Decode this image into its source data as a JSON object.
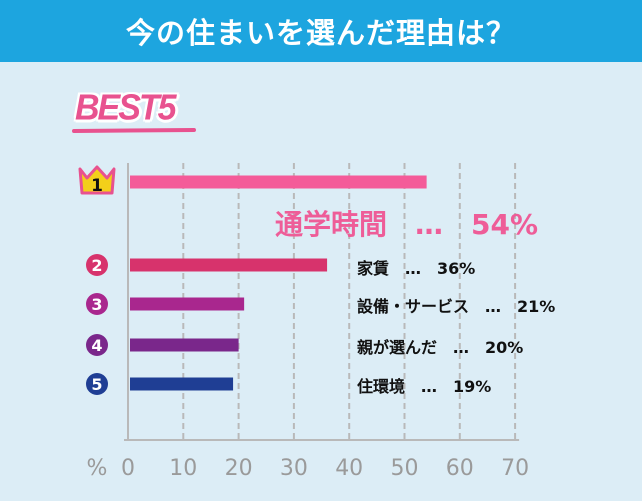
{
  "header": {
    "title": "今の住まいを選んだ理由は？"
  },
  "badge": {
    "text": "BEST5"
  },
  "chart_data": {
    "type": "bar",
    "orientation": "horizontal",
    "unit": "%",
    "xlim": [
      0,
      70
    ],
    "xticks": [
      0,
      10,
      20,
      30,
      40,
      50,
      60,
      70
    ],
    "grid": true,
    "categories": [
      "通学時間",
      "家賃",
      "設備・サービス",
      "親が選んだ",
      "住環境"
    ],
    "values": [
      54,
      36,
      21,
      20,
      19
    ],
    "ranks": [
      "1",
      "2",
      "3",
      "4",
      "5"
    ],
    "labels": [
      "通学時間　…　54%",
      "家賃　…　36%",
      "設備・サービス　…　21%",
      "親が選んだ　…　20%",
      "住環境　…　19%"
    ],
    "colors": [
      "#f45b99",
      "#d7336c",
      "#a9278e",
      "#7a278b",
      "#1f3e94"
    ]
  }
}
